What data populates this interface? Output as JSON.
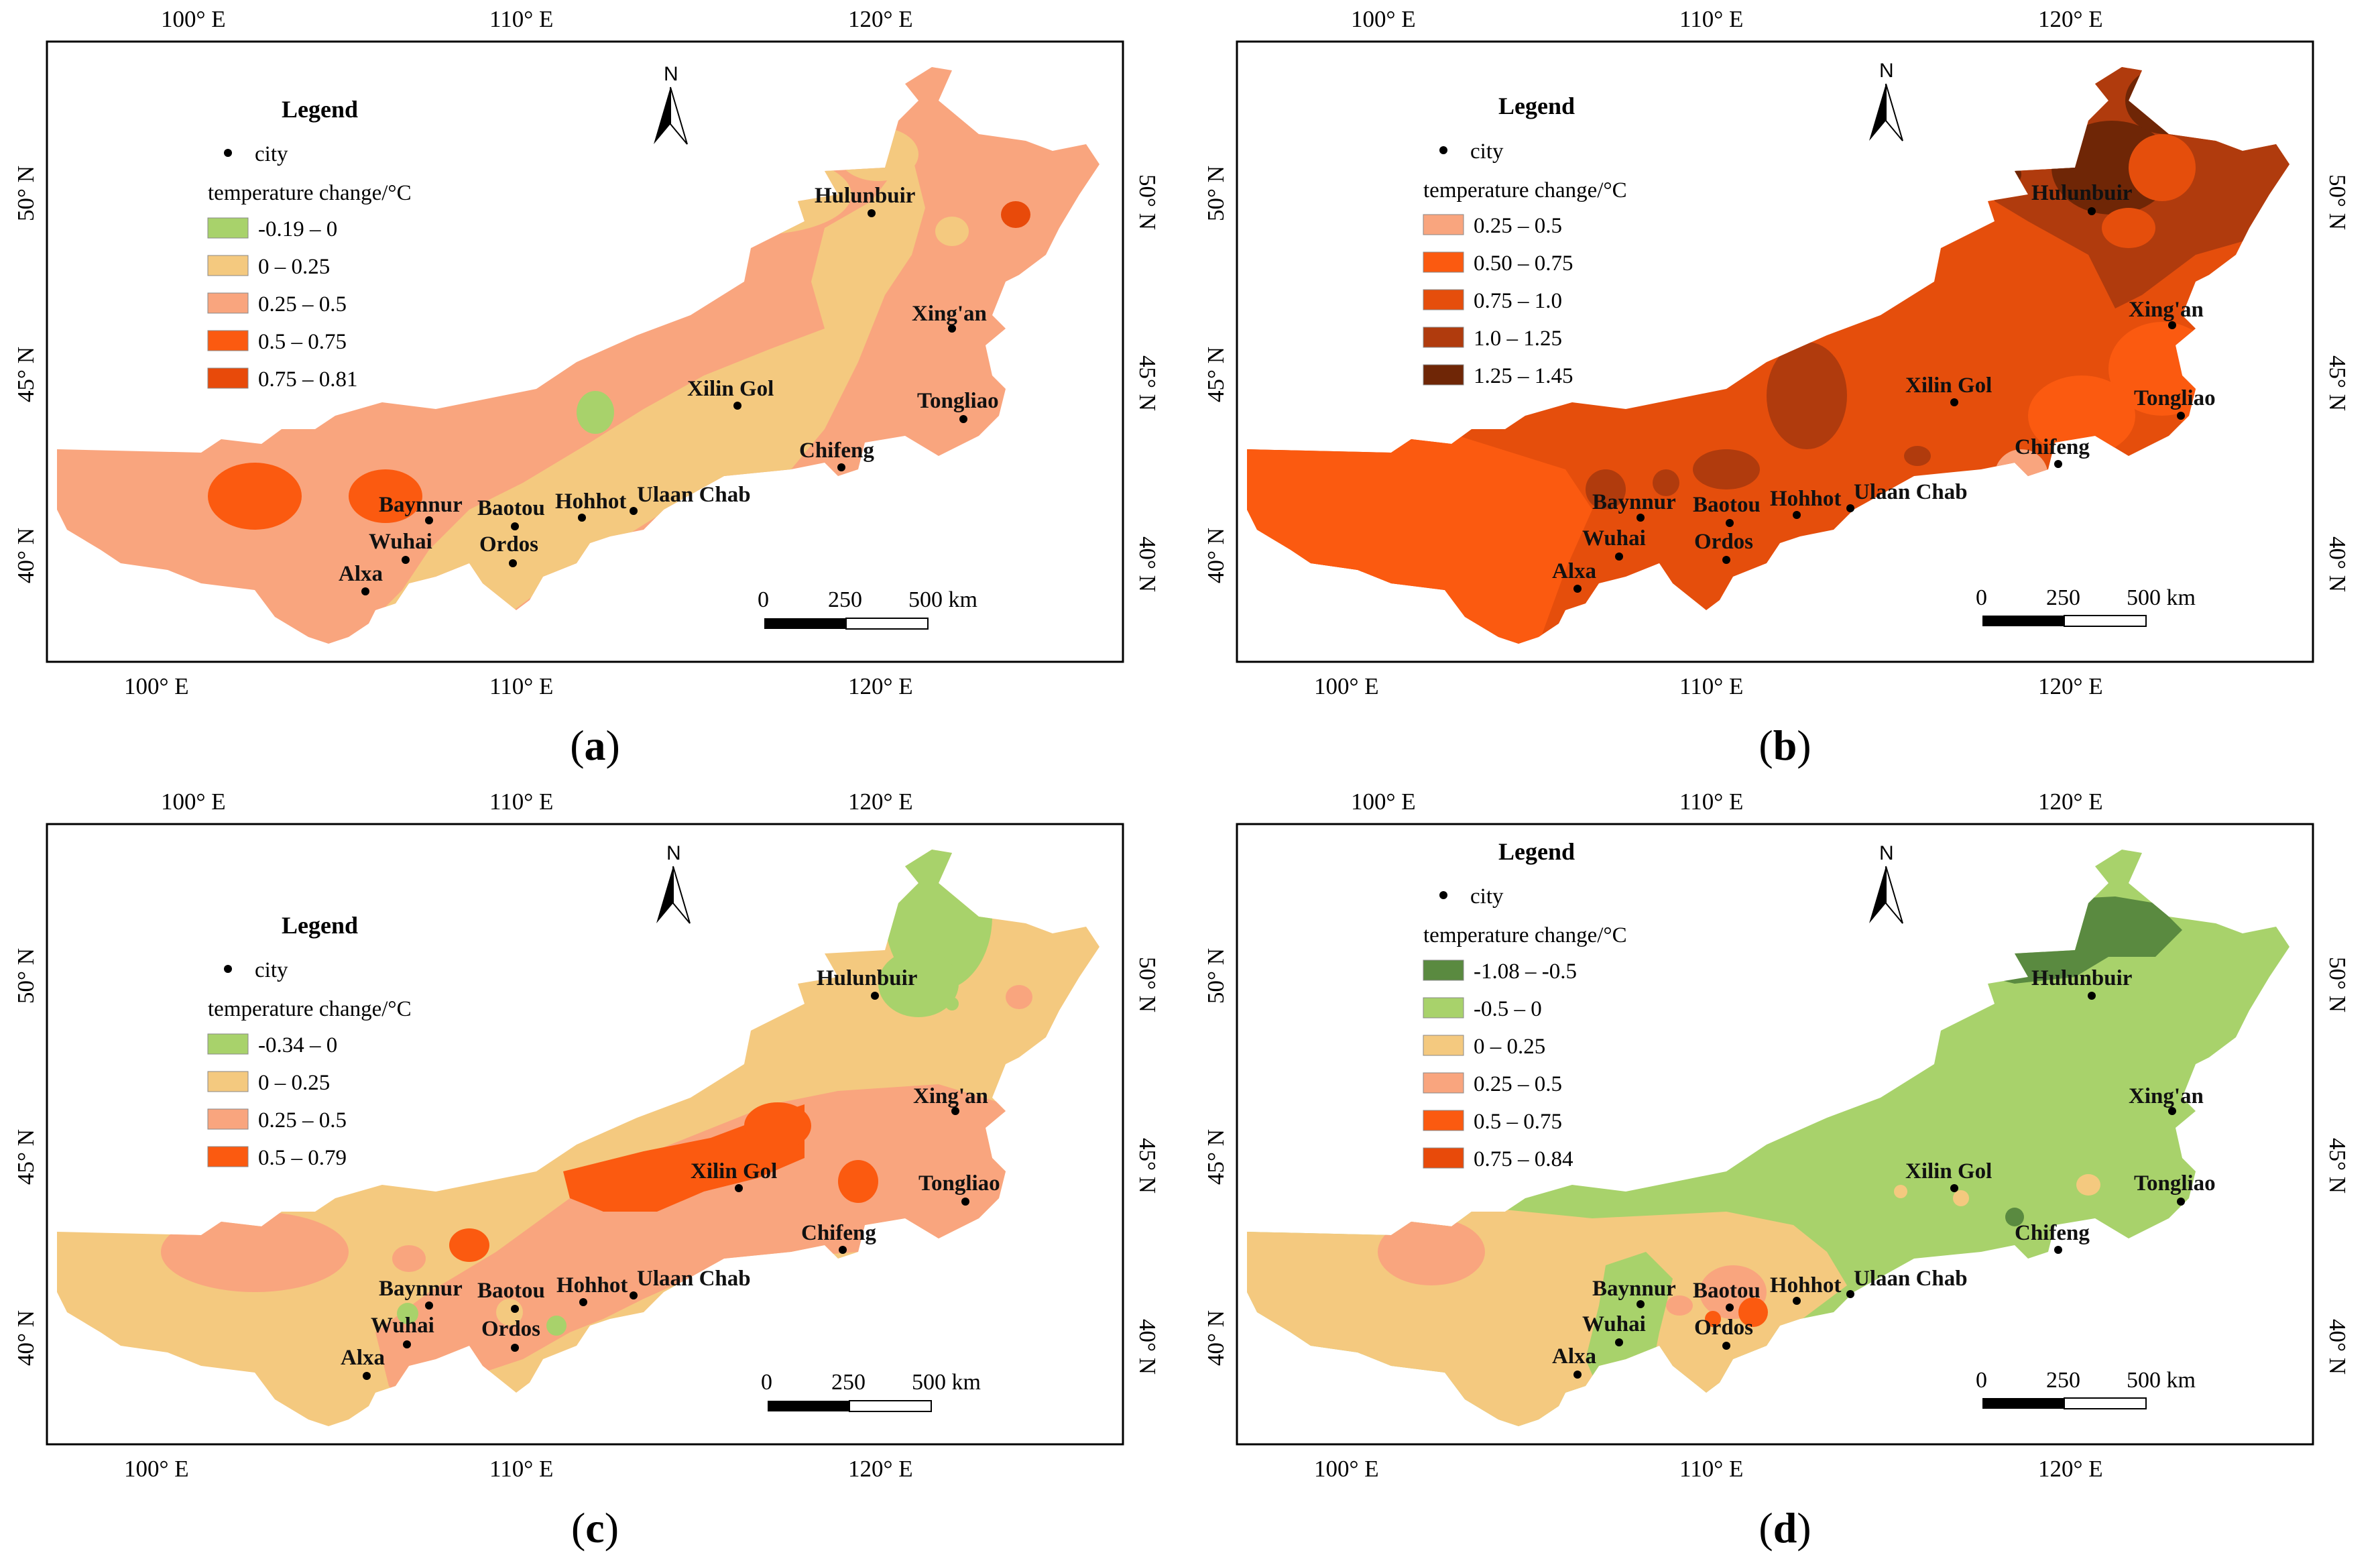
{
  "common": {
    "top_lon_labels": [
      "100° E",
      "110° E",
      "120° E"
    ],
    "bottom_lon_labels": [
      "100° E",
      "110° E",
      "120° E"
    ],
    "left_lat_labels": [
      "50° N",
      "45° N",
      "40° N"
    ],
    "right_lat_labels": [
      "50° N",
      "45° N",
      "40° N"
    ],
    "north_label": "N",
    "legend_title": "Legend",
    "city_label": "city",
    "temp_label": "temperature change/°C",
    "scale_labels": [
      "0",
      "250",
      "500 km"
    ],
    "cities": [
      "Hulunbuir",
      "Xing'an",
      "Xilin Gol",
      "Tongliao",
      "Chifeng",
      "Baynnur",
      "Baotou",
      "Hohhot",
      "Ulaan Chab",
      "Wuhai",
      "Ordos",
      "Alxa"
    ]
  },
  "panels": [
    {
      "id": "a",
      "caption": "a",
      "legend_classes": [
        {
          "label": "-0.19 – 0",
          "color": "#a8d26b"
        },
        {
          "label": "0 – 0.25",
          "color": "#f4c97f"
        },
        {
          "label": "0.25 – 0.5",
          "color": "#f9a57e"
        },
        {
          "label": "0.5 – 0.75",
          "color": "#fb5a10"
        },
        {
          "label": "0.75 – 0.81",
          "color": "#e84a0a"
        }
      ]
    },
    {
      "id": "b",
      "caption": "b",
      "legend_classes": [
        {
          "label": "0.25 – 0.5",
          "color": "#f9a57e"
        },
        {
          "label": "0.50 – 0.75",
          "color": "#fb5a10"
        },
        {
          "label": "0.75 – 1.0",
          "color": "#e54e0c"
        },
        {
          "label": "1.0 – 1.25",
          "color": "#b03b0d"
        },
        {
          "label": "1.25 – 1.45",
          "color": "#6f2606"
        }
      ]
    },
    {
      "id": "c",
      "caption": "c",
      "legend_classes": [
        {
          "label": "-0.34 – 0",
          "color": "#a8d26b"
        },
        {
          "label": "0 – 0.25",
          "color": "#f4c97f"
        },
        {
          "label": "0.25 – 0.5",
          "color": "#f9a57e"
        },
        {
          "label": "0.5 – 0.79",
          "color": "#fb5a10"
        }
      ]
    },
    {
      "id": "d",
      "caption": "d",
      "legend_classes": [
        {
          "label": "-1.08 – -0.5",
          "color": "#5a8a40"
        },
        {
          "label": "-0.5 – 0",
          "color": "#a8d26b"
        },
        {
          "label": "0 – 0.25",
          "color": "#f4c97f"
        },
        {
          "label": "0.25 – 0.5",
          "color": "#f9a57e"
        },
        {
          "label": "0.5 – 0.75",
          "color": "#fb5a10"
        },
        {
          "label": "0.75 – 0.84",
          "color": "#e84a0a"
        }
      ]
    }
  ]
}
